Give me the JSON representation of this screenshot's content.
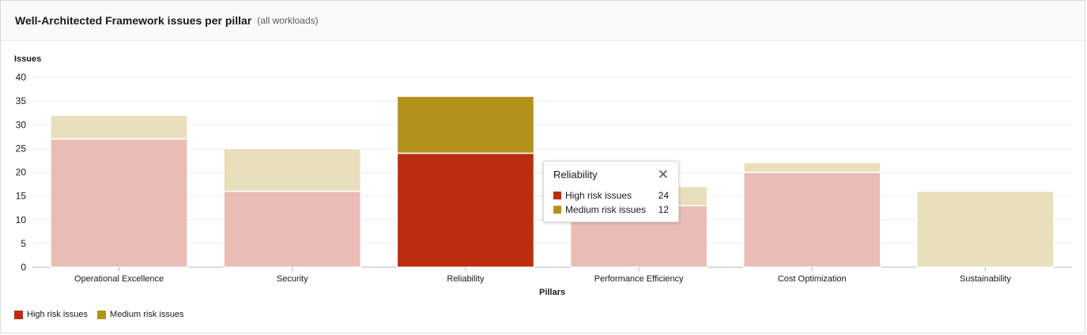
{
  "header": {
    "title": "Well-Architected Framework issues per pillar",
    "subtitle": "(all workloads)"
  },
  "chart_data": {
    "type": "bar",
    "stacked": true,
    "ylabel": "Issues",
    "xlabel": "Pillars",
    "ylim": [
      0,
      40
    ],
    "yticks": [
      0,
      5,
      10,
      15,
      20,
      25,
      30,
      35,
      40
    ],
    "categories": [
      "Operational Excellence",
      "Security",
      "Reliability",
      "Performance Efficiency",
      "Cost Optimization",
      "Sustainability"
    ],
    "series": [
      {
        "name": "High risk issues",
        "color": "#ba2e0f",
        "faded": "#e9bdb6",
        "values": [
          27,
          16,
          24,
          13,
          20,
          0
        ]
      },
      {
        "name": "Medium risk issues",
        "color": "#b3921c",
        "faded": "#e8dfbb",
        "values": [
          5,
          9,
          12,
          4,
          2,
          16
        ]
      }
    ],
    "highlighted": "Reliability",
    "legend_position": "bottom-left",
    "grid": true
  },
  "tooltip": {
    "title": "Reliability",
    "rows": [
      {
        "label": "High risk issues",
        "value": "24"
      },
      {
        "label": "Medium risk issues",
        "value": "12"
      }
    ]
  },
  "legend": [
    "High risk issues",
    "Medium risk issues"
  ]
}
